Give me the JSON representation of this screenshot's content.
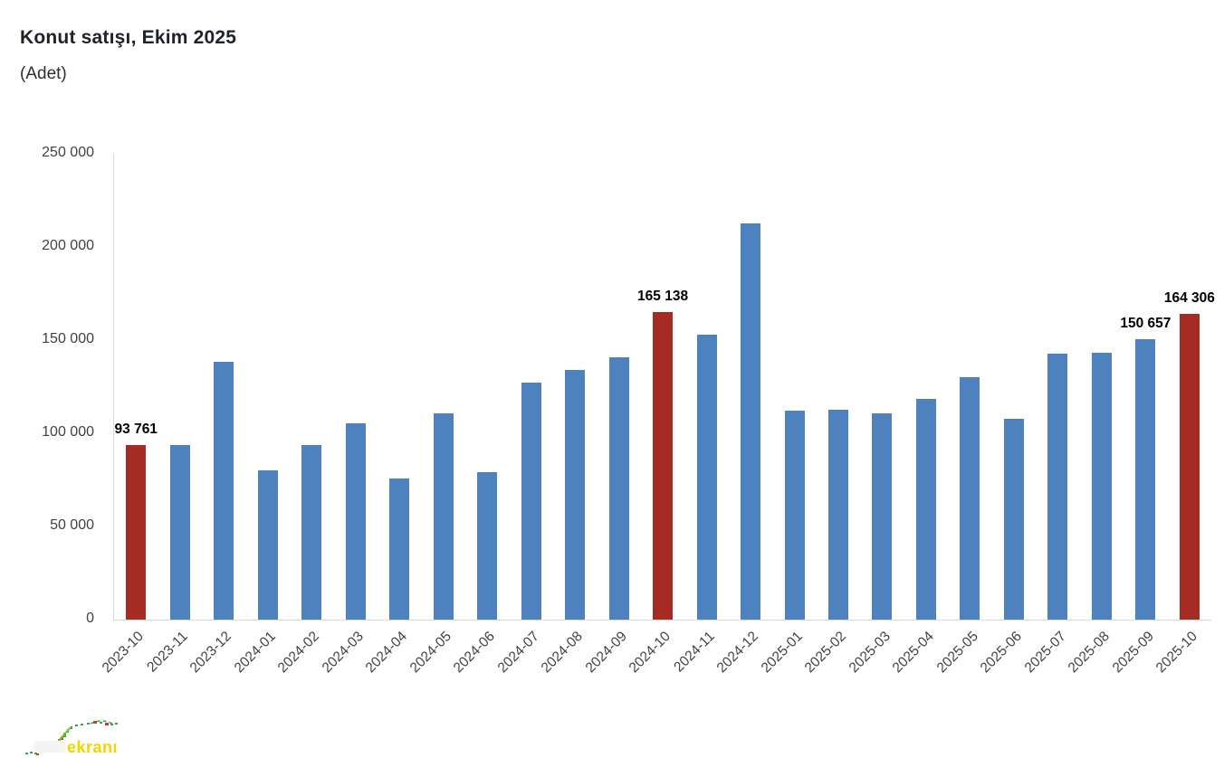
{
  "header": {
    "title": "Konut satışı, Ekim 2025",
    "subtitle": "(Adet)"
  },
  "watermark": {
    "brand_text": "ekranı",
    "sparkline_green": "#2fa84f",
    "sparkline_red": "#d03a2b",
    "brand_color": "#f2d400"
  },
  "chart_data": {
    "type": "bar",
    "title": "Konut satışı, Ekim 2025",
    "unit_label": "(Adet)",
    "categories": [
      "2023-10",
      "2023-11",
      "2023-12",
      "2024-01",
      "2024-02",
      "2024-03",
      "2024-04",
      "2024-05",
      "2024-06",
      "2024-07",
      "2024-08",
      "2024-09",
      "2024-10",
      "2024-11",
      "2024-12",
      "2025-01",
      "2025-02",
      "2025-03",
      "2025-04",
      "2025-05",
      "2025-06",
      "2025-07",
      "2025-08",
      "2025-09",
      "2025-10"
    ],
    "values": [
      93761,
      93514,
      138577,
      80308,
      93902,
      105476,
      75569,
      110588,
      79313,
      127088,
      134155,
      140919,
      165138,
      153014,
      212637,
      112173,
      112818,
      110795,
      118359,
      130025,
      107723,
      142858,
      143319,
      150657,
      164306
    ],
    "highlighted_indices": [
      0,
      12,
      24
    ],
    "data_labels": {
      "0": "93 761",
      "12": "165 138",
      "23": "150 657",
      "24": "164 306"
    },
    "ylim": [
      0,
      250000
    ],
    "yticks": [
      {
        "value": 250000,
        "label": "250 000"
      },
      {
        "value": 200000,
        "label": "200 000"
      },
      {
        "value": 150000,
        "label": "150 000"
      },
      {
        "value": 100000,
        "label": "100 000"
      },
      {
        "value": 50000,
        "label": "50 000"
      },
      {
        "value": 0,
        "label": "0"
      }
    ],
    "grid": "off",
    "legend": "none",
    "colors": {
      "bar": "#4e82be",
      "highlight": "#a62b23",
      "axis_line": "#d9d9d9"
    }
  }
}
